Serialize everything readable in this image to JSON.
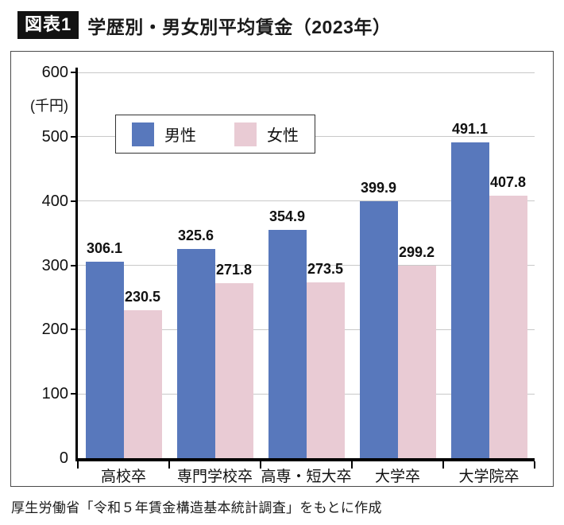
{
  "header": {
    "badge": "図表1",
    "title": "学歴別・男女別平均賃金（2023年）"
  },
  "chart_data": {
    "type": "bar",
    "title": "学歴別・男女別平均賃金（2023年）",
    "unit_label": "(千円)",
    "categories": [
      "高校卒",
      "専門学校卒",
      "高専・短大卒",
      "大学卒",
      "大学院卒"
    ],
    "series": [
      {
        "name": "男性",
        "color": "#5878BC",
        "values": [
          306.1,
          325.6,
          354.9,
          399.9,
          491.1
        ]
      },
      {
        "name": "女性",
        "color": "#E9CBD4",
        "values": [
          230.5,
          271.8,
          273.5,
          299.2,
          407.8
        ]
      }
    ],
    "ylim": [
      0,
      600
    ],
    "ytick_step": 100,
    "grid": true,
    "gridline_color": "#c9c9c9",
    "legend_position": "top-left-inside"
  },
  "footer": {
    "source": "厚生労働省「令和５年賃金構造基本統計調査」をもとに作成"
  }
}
